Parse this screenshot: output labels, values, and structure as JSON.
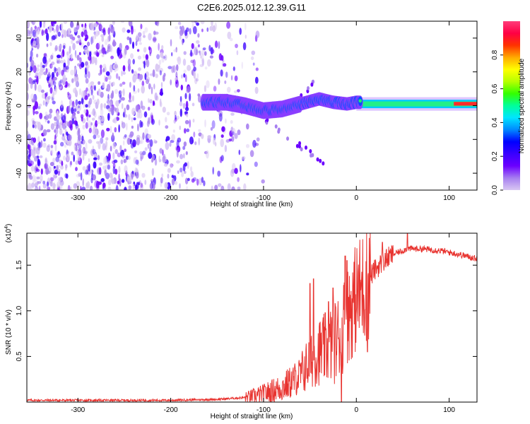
{
  "title": "C2E6.2025.012.12.39.G11",
  "colors": {
    "snr_line": "#e8332f",
    "frame": "#000000",
    "background": "#ffffff",
    "colormap": [
      "#ffffff",
      "#d9c7f2",
      "#a77ff0",
      "#6b00ff",
      "#3a00ff",
      "#0000ff",
      "#0088ff",
      "#00e5ff",
      "#00ff9a",
      "#33ff00",
      "#b6ff00",
      "#ffff00",
      "#ffaa00",
      "#ff3300",
      "#ff0044",
      "#ff3d7a"
    ]
  },
  "chart_data": [
    {
      "type": "heatmap",
      "title": "C2E6.2025.012.12.39.G11",
      "xlabel": "Height of straight line (km)",
      "ylabel": "Frequency (Hz)",
      "xlim": [
        -355,
        130
      ],
      "ylim": [
        -50,
        50
      ],
      "x_ticks": [
        -300,
        -200,
        -100,
        0,
        100
      ],
      "y_ticks": [
        -40,
        -20,
        0,
        20,
        40
      ],
      "colorbar": {
        "label": "Normalized spectral amplitude",
        "range": [
          0,
          1
        ],
        "ticks": [
          0.0,
          0.2,
          0.4,
          0.6,
          0.8
        ]
      },
      "features": {
        "noise_region_x": [
          -355,
          -120
        ],
        "carrier_start_x": -165,
        "carrier_freq_profile": [
          {
            "x": -165,
            "f": 2
          },
          {
            "x": -140,
            "f": 2
          },
          {
            "x": -120,
            "f": 0
          },
          {
            "x": -100,
            "f": -3
          },
          {
            "x": -80,
            "f": -2
          },
          {
            "x": -60,
            "f": 1
          },
          {
            "x": -40,
            "f": 4
          },
          {
            "x": -25,
            "f": 2
          },
          {
            "x": -10,
            "f": 1
          },
          {
            "x": 0,
            "f": 2
          },
          {
            "x": 130,
            "f": 1
          }
        ],
        "secondary_branch": [
          {
            "x": -100,
            "f": -8
          },
          {
            "x": -75,
            "f": -18
          },
          {
            "x": -50,
            "f": -28
          },
          {
            "x": -30,
            "f": -35
          }
        ],
        "upper_branch": [
          {
            "x": -60,
            "f": 6
          },
          {
            "x": -45,
            "f": 14
          }
        ]
      }
    },
    {
      "type": "line",
      "xlabel": "Height of straight line (km)",
      "ylabel": "SNR (10 * v/v)",
      "y_multiplier": "(x10",
      "y_multiplier_exp": "4",
      "y_multiplier_close": ")",
      "xlim": [
        -355,
        130
      ],
      "ylim": [
        0,
        1.85
      ],
      "x_ticks": [
        -300,
        -200,
        -100,
        0,
        100
      ],
      "y_ticks": [
        0.5,
        1.0,
        1.5
      ],
      "series": [
        {
          "profile": [
            {
              "x": -355,
              "y": 0.02
            },
            {
              "x": -200,
              "y": 0.02
            },
            {
              "x": -150,
              "y": 0.03
            },
            {
              "x": -120,
              "y": 0.05
            },
            {
              "x": -100,
              "y": 0.09
            },
            {
              "x": -80,
              "y": 0.16
            },
            {
              "x": -70,
              "y": 0.22
            },
            {
              "x": -60,
              "y": 0.3
            },
            {
              "x": -50,
              "y": 0.45
            },
            {
              "x": -40,
              "y": 0.55
            },
            {
              "x": -30,
              "y": 0.6
            },
            {
              "x": -20,
              "y": 0.7
            },
            {
              "x": -10,
              "y": 0.95
            },
            {
              "x": 0,
              "y": 1.15
            },
            {
              "x": 10,
              "y": 1.3
            },
            {
              "x": 20,
              "y": 1.45
            },
            {
              "x": 30,
              "y": 1.55
            },
            {
              "x": 40,
              "y": 1.62
            },
            {
              "x": 55,
              "y": 1.68
            },
            {
              "x": 70,
              "y": 1.68
            },
            {
              "x": 90,
              "y": 1.66
            },
            {
              "x": 110,
              "y": 1.62
            },
            {
              "x": 130,
              "y": 1.57
            }
          ],
          "spikes": [
            {
              "x": -50,
              "y": 1.3
            },
            {
              "x": -46,
              "y": 1.35
            },
            {
              "x": -30,
              "y": 1.1
            },
            {
              "x": -25,
              "y": 1.25
            },
            {
              "x": -12,
              "y": 1.6
            },
            {
              "x": -10,
              "y": 1.55
            },
            {
              "x": 12,
              "y": 1.8
            },
            {
              "x": 28,
              "y": 1.75
            },
            {
              "x": 55,
              "y": 1.85
            }
          ],
          "dips": [
            {
              "x": -16,
              "y": 0.0
            },
            {
              "x": 12,
              "y": 0.55
            }
          ]
        }
      ]
    }
  ]
}
